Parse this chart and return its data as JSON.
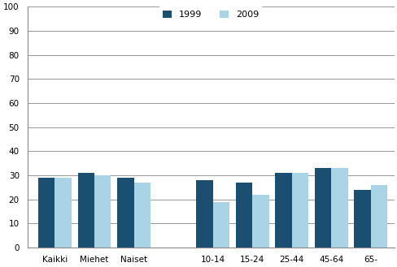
{
  "categories": [
    "Kaikki",
    "Miehet",
    "Naiset",
    "",
    "10-14",
    "15-24",
    "25-44",
    "45-64",
    "65-"
  ],
  "values_1999": [
    29,
    31,
    29,
    null,
    28,
    27,
    31,
    33,
    24
  ],
  "values_2009": [
    29,
    30,
    27,
    null,
    19,
    22,
    31,
    33,
    26
  ],
  "color_1999": "#1b4f72",
  "color_2009": "#a8d4e6",
  "legend_labels": [
    "1999",
    "2009"
  ],
  "ylim": [
    0,
    100
  ],
  "yticks": [
    0,
    10,
    20,
    30,
    40,
    50,
    60,
    70,
    80,
    90,
    100
  ],
  "bar_width": 0.42,
  "fig_width": 4.89,
  "fig_height": 3.29,
  "dpi": 100,
  "background_color": "#ffffff",
  "grid_color": "#888888"
}
